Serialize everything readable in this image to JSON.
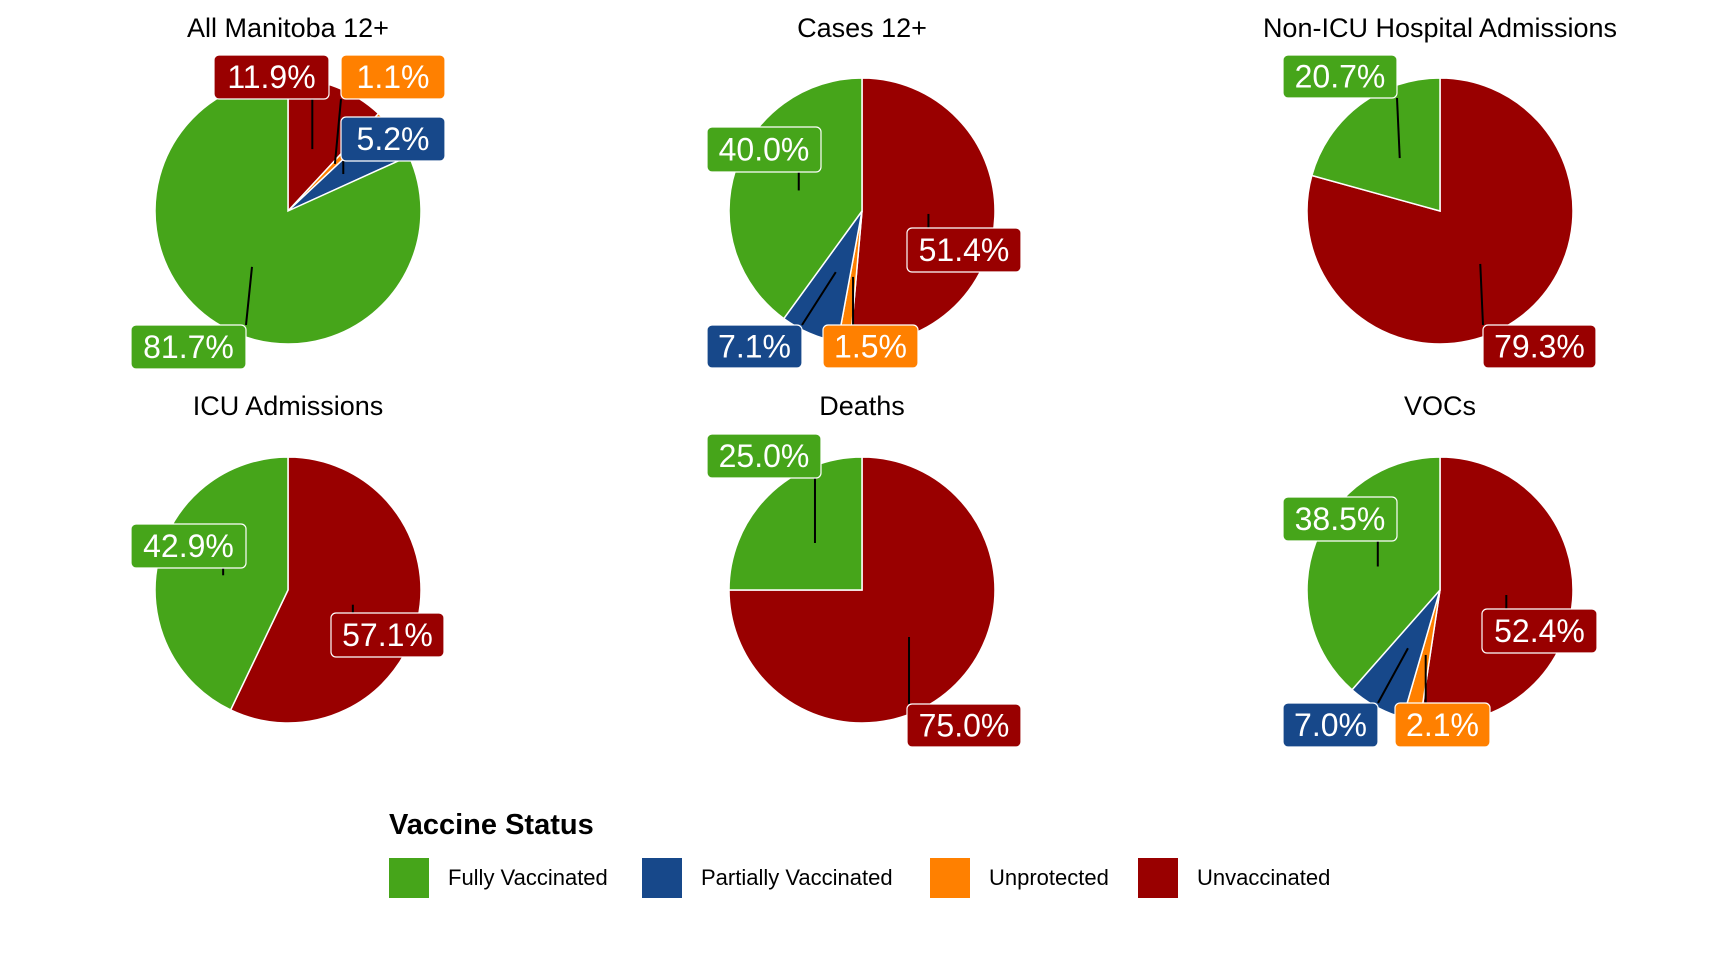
{
  "chart_data": {
    "type": "pie",
    "legend": {
      "title": "Vaccine Status",
      "placement": "bottom",
      "entries": [
        {
          "name": "Fully Vaccinated",
          "color": "#46A51A"
        },
        {
          "name": "Partially Vaccinated",
          "color": "#17488A"
        },
        {
          "name": "Unprotected",
          "color": "#FF8000"
        },
        {
          "name": "Unvaccinated",
          "color": "#990000"
        }
      ]
    },
    "slice_order_clockwise_from_top": [
      "Unvaccinated",
      "Unprotected",
      "Partially Vaccinated",
      "Fully Vaccinated"
    ],
    "panels": [
      {
        "title": "All Manitoba 12+",
        "slices": [
          {
            "category": "Unvaccinated",
            "value": 11.9,
            "label": "11.9%"
          },
          {
            "category": "Unprotected",
            "value": 1.1,
            "label": "1.1%"
          },
          {
            "category": "Partially Vaccinated",
            "value": 5.2,
            "label": "5.2%"
          },
          {
            "category": "Fully Vaccinated",
            "value": 81.7,
            "label": "81.7%"
          }
        ]
      },
      {
        "title": "Cases 12+",
        "slices": [
          {
            "category": "Unvaccinated",
            "value": 51.4,
            "label": "51.4%"
          },
          {
            "category": "Unprotected",
            "value": 1.5,
            "label": "1.5%"
          },
          {
            "category": "Partially Vaccinated",
            "value": 7.1,
            "label": "7.1%"
          },
          {
            "category": "Fully Vaccinated",
            "value": 40.0,
            "label": "40.0%"
          }
        ]
      },
      {
        "title": "Non-ICU Hospital Admissions",
        "slices": [
          {
            "category": "Unvaccinated",
            "value": 79.3,
            "label": "79.3%"
          },
          {
            "category": "Fully Vaccinated",
            "value": 20.7,
            "label": "20.7%"
          }
        ]
      },
      {
        "title": "ICU Admissions",
        "slices": [
          {
            "category": "Unvaccinated",
            "value": 57.1,
            "label": "57.1%"
          },
          {
            "category": "Fully Vaccinated",
            "value": 42.9,
            "label": "42.9%"
          }
        ]
      },
      {
        "title": "Deaths",
        "slices": [
          {
            "category": "Unvaccinated",
            "value": 75.0,
            "label": "75.0%"
          },
          {
            "category": "Fully Vaccinated",
            "value": 25.0,
            "label": "25.0%"
          }
        ]
      },
      {
        "title": "VOCs",
        "slices": [
          {
            "category": "Unvaccinated",
            "value": 52.4,
            "label": "52.4%"
          },
          {
            "category": "Unprotected",
            "value": 2.1,
            "label": "2.1%"
          },
          {
            "category": "Partially Vaccinated",
            "value": 7.0,
            "label": "7.0%"
          },
          {
            "category": "Fully Vaccinated",
            "value": 38.5,
            "label": "38.5%"
          }
        ]
      }
    ]
  }
}
